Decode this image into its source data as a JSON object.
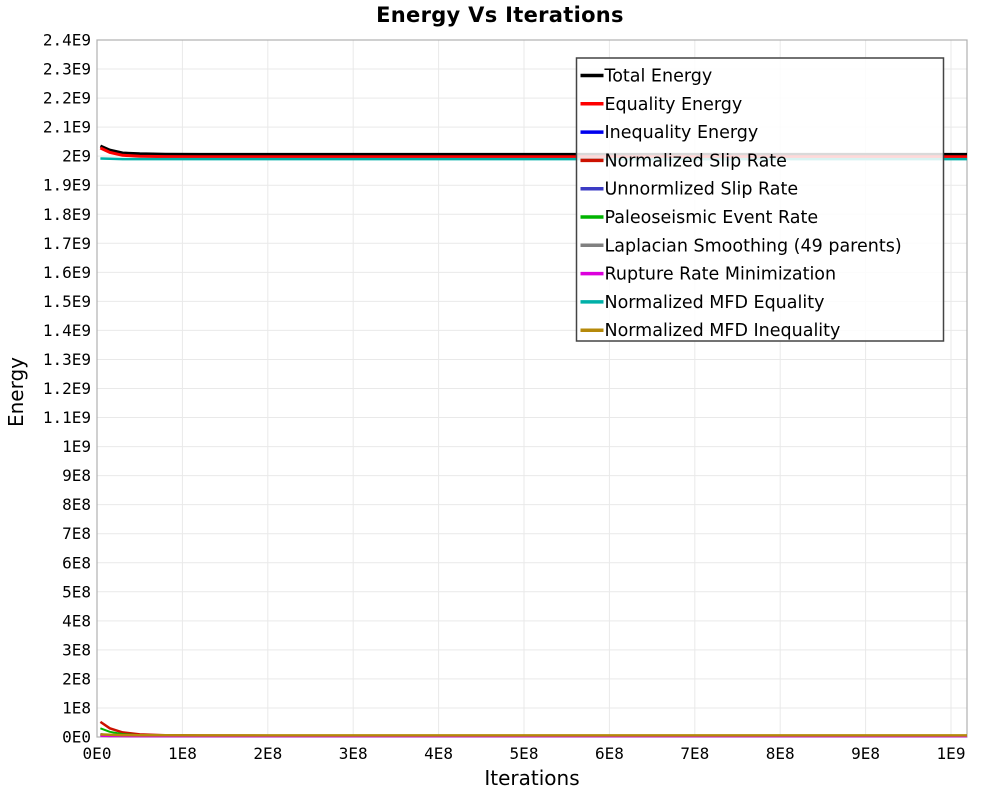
{
  "chart_data": {
    "type": "line",
    "title": "Energy Vs Iterations",
    "xlabel": "Iterations",
    "ylabel": "Energy",
    "grid": true,
    "legend_position": "top-right-inside",
    "axis_units": "values stored in units of 1E9",
    "xlim_e9": [
      0,
      1.0187
    ],
    "ylim_e9": [
      0,
      2.4
    ],
    "x_tick_values_e9": [
      0,
      0.1,
      0.2,
      0.3,
      0.4,
      0.5,
      0.6,
      0.7,
      0.8,
      0.9,
      1.0
    ],
    "x_tick_labels": [
      "0E0",
      "1E8",
      "2E8",
      "3E8",
      "4E8",
      "5E8",
      "6E8",
      "7E8",
      "8E8",
      "9E8",
      "1E9"
    ],
    "y_tick_values_e9": [
      2.4,
      2.3,
      2.2,
      2.1,
      2.0,
      1.9,
      1.8,
      1.7,
      1.6,
      1.5,
      1.4,
      1.3,
      1.2,
      1.1,
      1.0,
      0.9,
      0.8,
      0.7,
      0.6,
      0.5,
      0.4,
      0.3,
      0.2,
      0.1,
      0
    ],
    "y_tick_labels": [
      "2.4E9",
      "2.3E9",
      "2.2E9",
      "2.1E9",
      "2E9",
      "1.9E9",
      "1.8E9",
      "1.7E9",
      "1.6E9",
      "1.5E9",
      "1.4E9",
      "1.3E9",
      "1.2E9",
      "1.1E9",
      "1E9",
      "9E8",
      "8E8",
      "7E8",
      "6E8",
      "5E8",
      "4E8",
      "3E8",
      "2E8",
      "1E8",
      "0E0"
    ],
    "x_e9": [
      0.004,
      0.015,
      0.03,
      0.05,
      0.08,
      0.12,
      0.2,
      0.4,
      0.7,
      1.0187
    ],
    "series": [
      {
        "name": "Total Energy",
        "color": "#000000",
        "width": 3,
        "y_e9": [
          2.035,
          2.021,
          2.011,
          2.008,
          2.0065,
          2.006,
          2.006,
          2.006,
          2.006,
          2.006
        ]
      },
      {
        "name": "Equality Energy",
        "color": "#fe0000",
        "width": 3,
        "y_e9": [
          2.028,
          2.013,
          2.003,
          2.0,
          1.9985,
          1.998,
          1.998,
          1.998,
          1.998,
          1.998
        ]
      },
      {
        "name": "Inequality Energy",
        "color": "#0000ee",
        "width": 2,
        "y_e9": [
          0.01,
          0.006,
          0.004,
          0.003,
          0.0028,
          0.0027,
          0.0027,
          0.0027,
          0.0027,
          0.0027
        ]
      },
      {
        "name": "Normalized Slip Rate",
        "color": "#cc1100",
        "width": 2.5,
        "y_e9": [
          0.052,
          0.03,
          0.016,
          0.009,
          0.006,
          0.005,
          0.0045,
          0.0042,
          0.004,
          0.004
        ]
      },
      {
        "name": "Unnormlized Slip Rate",
        "color": "#3b3bc4",
        "width": 2,
        "y_e9": [
          0.007,
          0.005,
          0.0035,
          0.003,
          0.0028,
          0.0027,
          0.0026,
          0.0026,
          0.0026,
          0.0026
        ]
      },
      {
        "name": "Paleoseismic Event Rate",
        "color": "#00b400",
        "width": 2,
        "y_e9": [
          0.03,
          0.018,
          0.01,
          0.006,
          0.0045,
          0.004,
          0.0038,
          0.0036,
          0.0035,
          0.0035
        ]
      },
      {
        "name": "Laplacian Smoothing (49 parents)",
        "color": "#808080",
        "width": 2,
        "y_e9": [
          0.004,
          0.003,
          0.0025,
          0.0022,
          0.002,
          0.002,
          0.002,
          0.002,
          0.002,
          0.002
        ]
      },
      {
        "name": "Rupture Rate Minimization",
        "color": "#dc00dc",
        "width": 2,
        "y_e9": [
          0.0035,
          0.0028,
          0.0024,
          0.0022,
          0.0021,
          0.002,
          0.002,
          0.002,
          0.002,
          0.002
        ]
      },
      {
        "name": "Normalized MFD Equality",
        "color": "#00b0a8",
        "width": 2.5,
        "y_e9": [
          1.992,
          1.991,
          1.99,
          1.99,
          1.99,
          1.99,
          1.99,
          1.99,
          1.99,
          1.99
        ]
      },
      {
        "name": "Normalized MFD Inequality",
        "color": "#b5890a",
        "width": 2.5,
        "y_e9": [
          0.009,
          0.0075,
          0.0065,
          0.006,
          0.0057,
          0.0055,
          0.0055,
          0.0055,
          0.0055,
          0.0055
        ]
      }
    ],
    "colors": {
      "grid": "#e9e9e9",
      "plot_border": "#b0b0b0",
      "legend_border": "#444444",
      "legend_background": "#ffffff",
      "text": "#000000"
    }
  }
}
